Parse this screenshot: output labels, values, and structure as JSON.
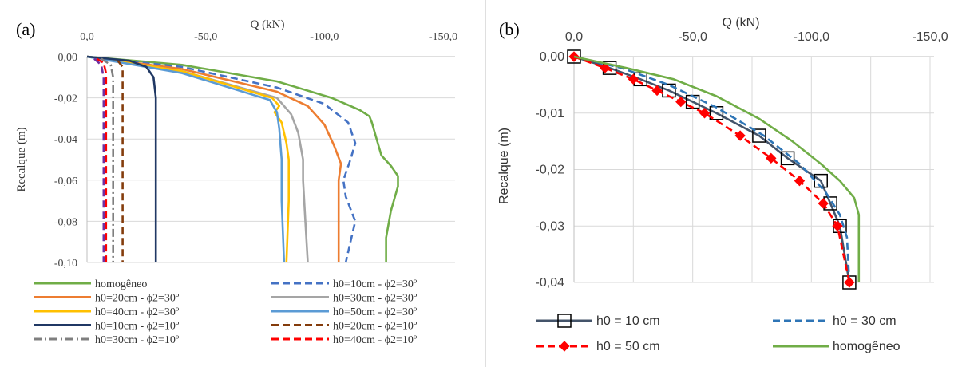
{
  "chart_data": [
    {
      "type": "line",
      "panel_label": "(a)",
      "xlabel": "Q (kN)",
      "ylabel": "Recalque (m)",
      "xlim": [
        0,
        -150
      ],
      "ylim": [
        0,
        -0.1
      ],
      "x_ticks": [
        "0,0",
        "-50,0",
        "-100,0",
        "-150,0"
      ],
      "y_ticks": [
        "0,00",
        "-0,02",
        "-0,04",
        "-0,06",
        "-0,08",
        "-0,10"
      ],
      "grid": "horizontal",
      "legend_position": "bottom",
      "series": [
        {
          "name": "homogêneo",
          "color": "#70ad47",
          "dash": "solid",
          "points": [
            [
              0,
              0
            ],
            [
              -40,
              -0.004
            ],
            [
              -80,
              -0.012
            ],
            [
              -103,
              -0.02
            ],
            [
              -115,
              -0.026
            ],
            [
              -119,
              -0.029
            ],
            [
              -120,
              -0.032
            ],
            [
              -122,
              -0.04
            ],
            [
              -124,
              -0.048
            ],
            [
              -128,
              -0.053
            ],
            [
              -131,
              -0.058
            ],
            [
              -131,
              -0.063
            ],
            [
              -128,
              -0.075
            ],
            [
              -126,
              -0.088
            ],
            [
              -126,
              -0.1
            ]
          ]
        },
        {
          "name": "h0=10cm - ϕ2=30º",
          "color": "#4472c4",
          "dash": "dashed",
          "points": [
            [
              0,
              0
            ],
            [
              -40,
              -0.005
            ],
            [
              -80,
              -0.015
            ],
            [
              -100,
              -0.023
            ],
            [
              -110,
              -0.032
            ],
            [
              -113,
              -0.042
            ],
            [
              -111,
              -0.05
            ],
            [
              -108,
              -0.06
            ],
            [
              -109,
              -0.068
            ],
            [
              -113,
              -0.08
            ],
            [
              -111,
              -0.09
            ],
            [
              -109,
              -0.1
            ]
          ]
        },
        {
          "name": "h0=20cm - ϕ2=30º",
          "color": "#ed7d31",
          "dash": "solid",
          "points": [
            [
              0,
              0
            ],
            [
              -40,
              -0.006
            ],
            [
              -80,
              -0.017
            ],
            [
              -93,
              -0.024
            ],
            [
              -100,
              -0.033
            ],
            [
              -104,
              -0.043
            ],
            [
              -107,
              -0.052
            ],
            [
              -106,
              -0.06
            ],
            [
              -106,
              -0.08
            ],
            [
              -106,
              -0.1
            ]
          ]
        },
        {
          "name": "h0=30cm - ϕ2=30º",
          "color": "#a5a5a5",
          "dash": "solid",
          "points": [
            [
              0,
              0
            ],
            [
              -40,
              -0.007
            ],
            [
              -80,
              -0.02
            ],
            [
              -86,
              -0.028
            ],
            [
              -89,
              -0.037
            ],
            [
              -91,
              -0.05
            ],
            [
              -91,
              -0.06
            ],
            [
              -92,
              -0.08
            ],
            [
              -93,
              -0.1
            ]
          ]
        },
        {
          "name": "h0=40cm - ϕ2=30º",
          "color": "#ffc000",
          "dash": "solid",
          "points": [
            [
              0,
              0
            ],
            [
              -40,
              -0.007
            ],
            [
              -78,
              -0.02
            ],
            [
              -81,
              -0.024
            ],
            [
              -79,
              -0.027
            ],
            [
              -82,
              -0.032
            ],
            [
              -84,
              -0.042
            ],
            [
              -85,
              -0.05
            ],
            [
              -85,
              -0.07
            ],
            [
              -84,
              -0.1
            ]
          ]
        },
        {
          "name": "h0=50cm - ϕ2=30º",
          "color": "#5b9bd5",
          "dash": "solid",
          "points": [
            [
              0,
              0
            ],
            [
              -40,
              -0.008
            ],
            [
              -77,
              -0.021
            ],
            [
              -80,
              -0.027
            ],
            [
              -81,
              -0.035
            ],
            [
              -82,
              -0.05
            ],
            [
              -82,
              -0.07
            ],
            [
              -83,
              -0.1
            ]
          ]
        },
        {
          "name": "h0=10cm - ϕ2=10º",
          "color": "#203864",
          "dash": "solid",
          "points": [
            [
              0,
              0
            ],
            [
              -18,
              -0.002
            ],
            [
              -25,
              -0.005
            ],
            [
              -28,
              -0.01
            ],
            [
              -29,
              -0.02
            ],
            [
              -29,
              -0.05
            ],
            [
              -29,
              -0.1
            ]
          ]
        },
        {
          "name": "h0=20cm - ϕ2=10º",
          "color": "#843c0c",
          "dash": "dashed",
          "points": [
            [
              -13,
              -0.002
            ],
            [
              -15,
              -0.005
            ],
            [
              -15,
              -0.02
            ],
            [
              -15,
              -0.06
            ],
            [
              -15,
              -0.1
            ]
          ]
        },
        {
          "name": "h0=30cm - ϕ2=10º",
          "color": "#7f7f7f",
          "dash": "dashdot",
          "points": [
            [
              -6,
              -0.001
            ],
            [
              -10,
              -0.004
            ],
            [
              -11,
              -0.01
            ],
            [
              -11,
              -0.05
            ],
            [
              -11,
              -0.1
            ]
          ]
        },
        {
          "name": "h0=40cm - ϕ2=10º",
          "color": "#ff0000",
          "dash": "dashed",
          "points": [
            [
              -4,
              -0.001
            ],
            [
              -7,
              -0.003
            ],
            [
              -8,
              -0.008
            ],
            [
              -8,
              -0.03
            ],
            [
              -8,
              -0.06
            ],
            [
              -8,
              -0.1
            ]
          ]
        },
        {
          "name": "",
          "color": "#7030a0",
          "dash": "dashed",
          "points": [
            [
              -3,
              -0.001
            ],
            [
              -6,
              -0.004
            ],
            [
              -7,
              -0.01
            ],
            [
              -7,
              -0.05
            ],
            [
              -7,
              -0.1
            ]
          ]
        }
      ]
    },
    {
      "type": "line",
      "panel_label": "(b)",
      "xlabel": "Q (kN)",
      "ylabel": "Recalque (m)",
      "xlim": [
        0,
        -150
      ],
      "ylim": [
        0,
        -0.04
      ],
      "x_ticks": [
        "0,0",
        "-50,0",
        "-100,0",
        "-150,0"
      ],
      "y_ticks": [
        "0,00",
        "-0,01",
        "-0,02",
        "-0,03",
        "-0,04"
      ],
      "grid": "both",
      "legend_position": "bottom",
      "series": [
        {
          "name": "h0 = 10 cm",
          "color": "#44546a",
          "dash": "solid",
          "marker": "square",
          "points": [
            [
              0,
              0
            ],
            [
              -15,
              -0.002
            ],
            [
              -28,
              -0.004
            ],
            [
              -40,
              -0.006
            ],
            [
              -50,
              -0.008
            ],
            [
              -60,
              -0.01
            ],
            [
              -78,
              -0.014
            ],
            [
              -90,
              -0.018
            ],
            [
              -104,
              -0.022
            ],
            [
              -108,
              -0.026
            ],
            [
              -112,
              -0.03
            ],
            [
              -116,
              -0.04
            ]
          ]
        },
        {
          "name": "h0 = 30 cm",
          "color": "#2e75b6",
          "dash": "dashed",
          "points": [
            [
              0,
              0
            ],
            [
              -20,
              -0.002
            ],
            [
              -40,
              -0.005
            ],
            [
              -60,
              -0.009
            ],
            [
              -80,
              -0.014
            ],
            [
              -95,
              -0.019
            ],
            [
              -106,
              -0.024
            ],
            [
              -112,
              -0.028
            ],
            [
              -115,
              -0.032
            ],
            [
              -116,
              -0.04
            ]
          ]
        },
        {
          "name": "h0 = 50 cm",
          "color": "#ff0000",
          "dash": "dashed",
          "marker": "diamond",
          "points": [
            [
              0,
              0
            ],
            [
              -13,
              -0.002
            ],
            [
              -25,
              -0.004
            ],
            [
              -35,
              -0.006
            ],
            [
              -45,
              -0.008
            ],
            [
              -55,
              -0.01
            ],
            [
              -70,
              -0.014
            ],
            [
              -83,
              -0.018
            ],
            [
              -95,
              -0.022
            ],
            [
              -105,
              -0.026
            ],
            [
              -111,
              -0.03
            ],
            [
              -116,
              -0.04
            ]
          ]
        },
        {
          "name": "homogêneo",
          "color": "#70ad47",
          "dash": "solid",
          "points": [
            [
              0,
              0
            ],
            [
              -22,
              -0.002
            ],
            [
              -42,
              -0.004
            ],
            [
              -60,
              -0.007
            ],
            [
              -78,
              -0.011
            ],
            [
              -92,
              -0.015
            ],
            [
              -104,
              -0.019
            ],
            [
              -112,
              -0.022
            ],
            [
              -118,
              -0.025
            ],
            [
              -120,
              -0.028
            ],
            [
              -120,
              -0.034
            ],
            [
              -120,
              -0.04
            ]
          ]
        }
      ]
    }
  ]
}
